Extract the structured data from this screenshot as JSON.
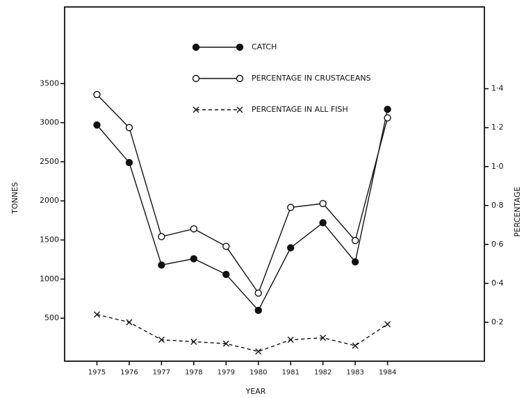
{
  "chart_data": {
    "type": "line",
    "x_label": "YEAR",
    "y_label": "TONNES",
    "y2_label": "PERCENTAGE",
    "x": [
      1975,
      1976,
      1977,
      1978,
      1979,
      1980,
      1981,
      1982,
      1983,
      1984
    ],
    "xlim": [
      1974,
      1987
    ],
    "xticks": [
      1975,
      1976,
      1977,
      1978,
      1979,
      1980,
      1981,
      1982,
      1983,
      1984
    ],
    "ylim": [
      -50,
      4480
    ],
    "yticks": [
      500,
      1000,
      1500,
      2000,
      2500,
      3000,
      3500
    ],
    "y2lim": [
      0,
      1.82
    ],
    "y2ticks": [
      {
        "value": 0.2,
        "label": "0·2"
      },
      {
        "value": 0.4,
        "label": "0·4"
      },
      {
        "value": 0.6,
        "label": "0·6"
      },
      {
        "value": 0.8,
        "label": "0·8"
      },
      {
        "value": 1.0,
        "label": "1·0"
      },
      {
        "value": 1.2,
        "label": "1·2"
      },
      {
        "value": 1.4,
        "label": "1·4"
      }
    ],
    "series": [
      {
        "name": "CATCH",
        "color": "#111111",
        "marker": "filled-circle",
        "dash": false,
        "axis": "y",
        "values": [
          2970,
          2490,
          1180,
          1260,
          1060,
          600,
          1400,
          1720,
          1220,
          3170
        ]
      },
      {
        "name": "PERCENTAGE IN CRUSTACEANS",
        "color": "#111111",
        "marker": "open-circle",
        "dash": false,
        "axis": "y2",
        "values": [
          1.37,
          1.2,
          0.64,
          0.68,
          0.59,
          0.35,
          0.79,
          0.81,
          0.62,
          1.25
        ]
      },
      {
        "name": "PERCENTAGE IN ALL FISH",
        "color": "#111111",
        "marker": "x",
        "dash": true,
        "axis": "y2",
        "values": [
          0.24,
          0.2,
          0.11,
          0.1,
          0.09,
          0.05,
          0.11,
          0.12,
          0.08,
          0.19
        ]
      }
    ]
  }
}
